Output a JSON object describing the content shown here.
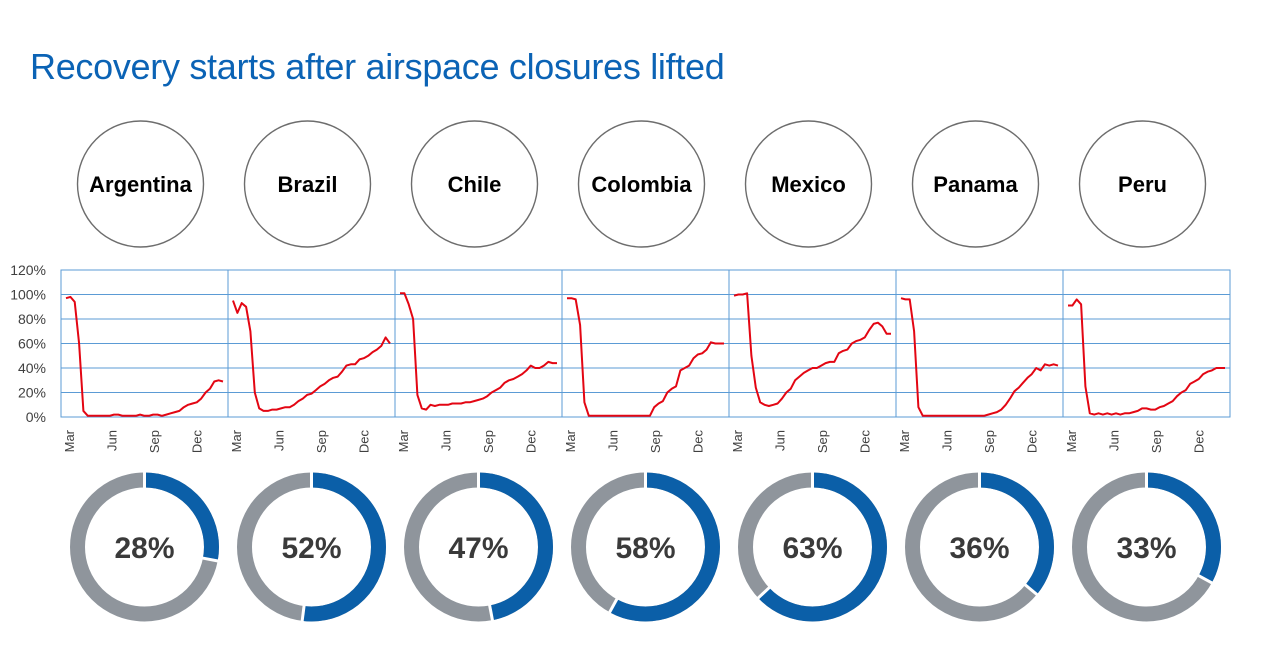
{
  "title": "Recovery starts after airspace closures lifted",
  "colors": {
    "title": "#0b63b5",
    "line": "#e30613",
    "grid": "#5b9bd5",
    "donut_fill": "#0b5fa8",
    "donut_rest": "#8f959c",
    "globe_ocean": "#ffffff",
    "globe_land": "#c9ccce",
    "globe_highlight": "#45b3b5"
  },
  "chart_data": {
    "type": "line",
    "ylim": [
      0,
      1.2
    ],
    "y_ticks": [
      "0%",
      "20%",
      "40%",
      "60%",
      "80%",
      "100%",
      "120%"
    ],
    "x_ticks": [
      "Mar",
      "Jun",
      "Sep",
      "Dec"
    ],
    "grid": true,
    "series": [
      {
        "name": "Argentina",
        "donut_label": "28%",
        "donut_value": 0.28,
        "values": [
          0.97,
          0.98,
          0.94,
          0.6,
          0.05,
          0.01,
          0.01,
          0.01,
          0.01,
          0.01,
          0.01,
          0.02,
          0.02,
          0.01,
          0.01,
          0.01,
          0.01,
          0.02,
          0.01,
          0.01,
          0.02,
          0.02,
          0.01,
          0.02,
          0.03,
          0.04,
          0.05,
          0.08,
          0.1,
          0.11,
          0.12,
          0.15,
          0.2,
          0.23,
          0.29,
          0.3,
          0.29
        ]
      },
      {
        "name": "Brazil",
        "donut_label": "52%",
        "donut_value": 0.52,
        "values": [
          0.95,
          0.85,
          0.93,
          0.9,
          0.7,
          0.2,
          0.07,
          0.05,
          0.05,
          0.06,
          0.06,
          0.07,
          0.08,
          0.08,
          0.1,
          0.13,
          0.15,
          0.18,
          0.19,
          0.22,
          0.25,
          0.27,
          0.3,
          0.32,
          0.33,
          0.37,
          0.42,
          0.43,
          0.43,
          0.47,
          0.48,
          0.5,
          0.53,
          0.55,
          0.58,
          0.65,
          0.6
        ]
      },
      {
        "name": "Chile",
        "donut_label": "47%",
        "donut_value": 0.47,
        "values": [
          1.01,
          1.01,
          0.92,
          0.8,
          0.18,
          0.07,
          0.06,
          0.1,
          0.09,
          0.1,
          0.1,
          0.1,
          0.11,
          0.11,
          0.11,
          0.12,
          0.12,
          0.13,
          0.14,
          0.15,
          0.17,
          0.2,
          0.22,
          0.24,
          0.28,
          0.3,
          0.31,
          0.33,
          0.35,
          0.38,
          0.42,
          0.4,
          0.4,
          0.42,
          0.45,
          0.44,
          0.44
        ]
      },
      {
        "name": "Colombia",
        "donut_label": "58%",
        "donut_value": 0.58,
        "values": [
          0.97,
          0.97,
          0.96,
          0.75,
          0.12,
          0.01,
          0.01,
          0.01,
          0.01,
          0.01,
          0.01,
          0.01,
          0.01,
          0.01,
          0.01,
          0.01,
          0.01,
          0.01,
          0.01,
          0.01,
          0.08,
          0.11,
          0.13,
          0.2,
          0.23,
          0.25,
          0.38,
          0.4,
          0.42,
          0.48,
          0.51,
          0.52,
          0.55,
          0.61,
          0.6,
          0.6,
          0.6
        ]
      },
      {
        "name": "Mexico",
        "donut_label": "63%",
        "donut_value": 0.63,
        "values": [
          0.99,
          1.0,
          1.0,
          1.01,
          0.5,
          0.24,
          0.12,
          0.1,
          0.09,
          0.1,
          0.11,
          0.15,
          0.2,
          0.23,
          0.3,
          0.33,
          0.36,
          0.38,
          0.4,
          0.4,
          0.42,
          0.44,
          0.45,
          0.45,
          0.52,
          0.54,
          0.55,
          0.6,
          0.62,
          0.63,
          0.65,
          0.71,
          0.76,
          0.77,
          0.74,
          0.68,
          0.68
        ]
      },
      {
        "name": "Panama",
        "donut_label": "36%",
        "donut_value": 0.36,
        "values": [
          0.97,
          0.96,
          0.96,
          0.7,
          0.08,
          0.01,
          0.01,
          0.01,
          0.01,
          0.01,
          0.01,
          0.01,
          0.01,
          0.01,
          0.01,
          0.01,
          0.01,
          0.01,
          0.01,
          0.01,
          0.02,
          0.03,
          0.04,
          0.06,
          0.1,
          0.15,
          0.21,
          0.24,
          0.28,
          0.32,
          0.35,
          0.4,
          0.38,
          0.43,
          0.42,
          0.43,
          0.42
        ]
      },
      {
        "name": "Peru",
        "donut_label": "33%",
        "donut_value": 0.33,
        "values": [
          0.91,
          0.91,
          0.96,
          0.92,
          0.25,
          0.03,
          0.02,
          0.03,
          0.02,
          0.03,
          0.02,
          0.03,
          0.02,
          0.03,
          0.03,
          0.04,
          0.05,
          0.07,
          0.07,
          0.06,
          0.06,
          0.08,
          0.09,
          0.11,
          0.13,
          0.17,
          0.2,
          0.22,
          0.27,
          0.29,
          0.31,
          0.35,
          0.37,
          0.38,
          0.4,
          0.4,
          0.4
        ]
      }
    ]
  }
}
